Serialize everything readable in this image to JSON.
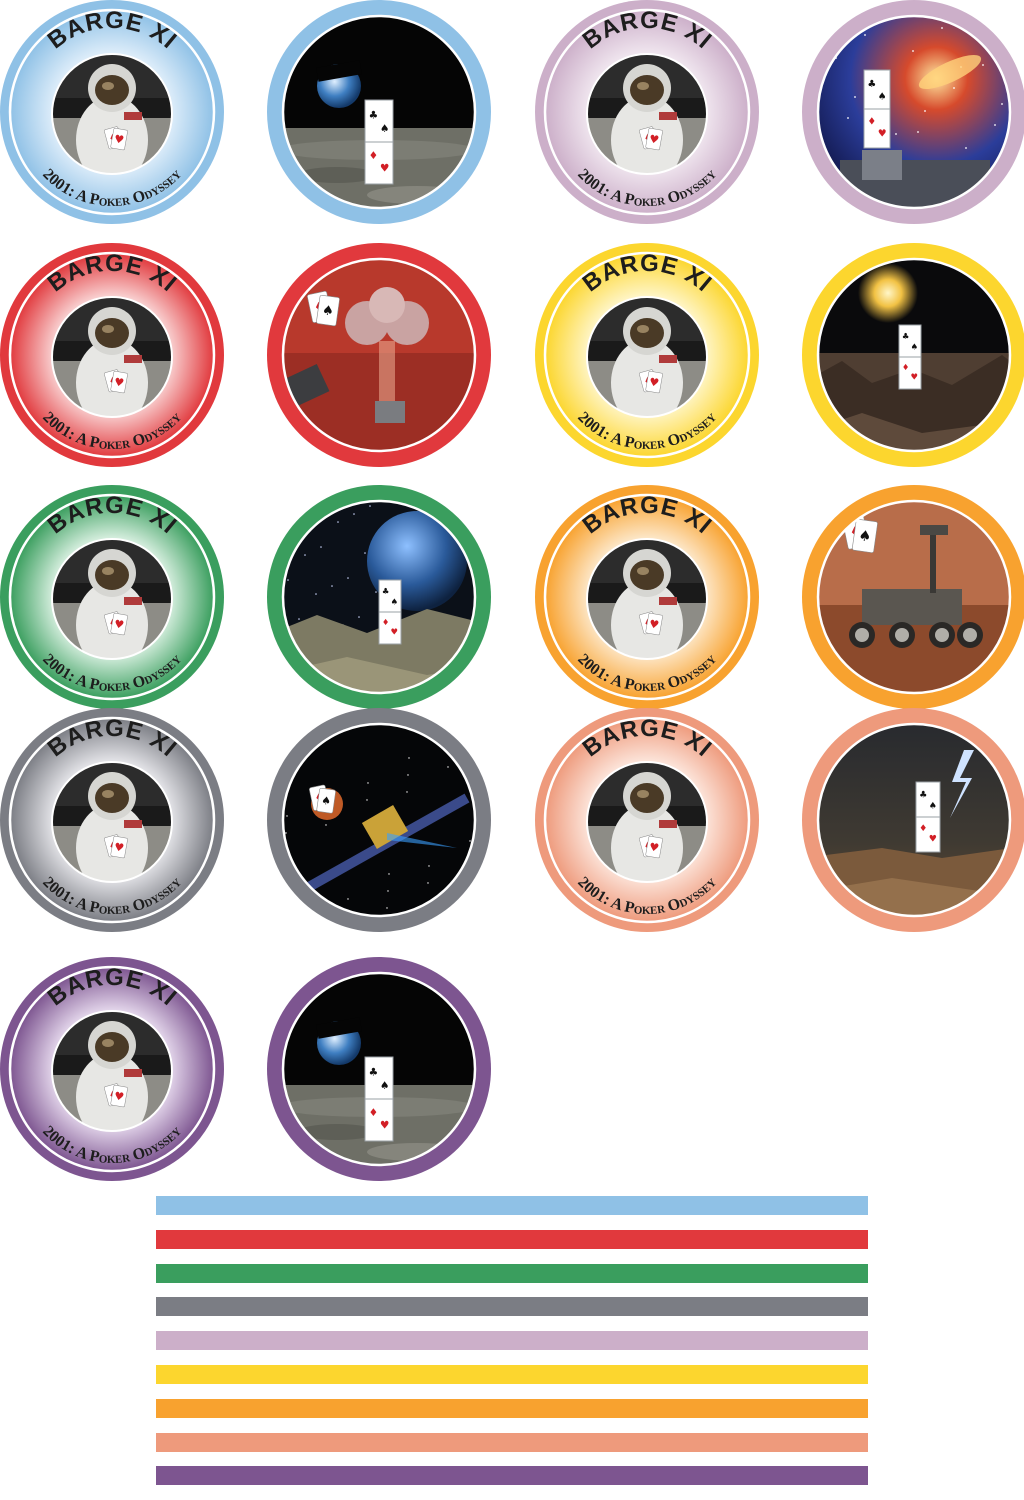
{
  "chip_text": {
    "title": "BARGE XI",
    "subtitle_prefix": "2001: ",
    "subtitle_a": "A",
    "subtitle_p": "P",
    "subtitle_oker": "OKER",
    "subtitle_o": "O",
    "subtitle_dyssey": "DYSSEY"
  },
  "chips": [
    {
      "color_name": "blue",
      "color": "#8fc1e6",
      "light": "#e3f0fb",
      "scene": "earthrise-moon"
    },
    {
      "color_name": "lavender",
      "color": "#ccafc9",
      "light": "#f2e9f1",
      "scene": "galaxy-telescope"
    },
    {
      "color_name": "red",
      "color": "#e1393d",
      "light": "#fadada",
      "scene": "mars-lander"
    },
    {
      "color_name": "yellow",
      "color": "#fcd62e",
      "light": "#fff7d0",
      "scene": "sun-rocky-planet"
    },
    {
      "color_name": "green",
      "color": "#3a9e5e",
      "light": "#dff3e6",
      "scene": "gas-giant-moon"
    },
    {
      "color_name": "orange",
      "color": "#f8a22f",
      "light": "#fdebd1",
      "scene": "mars-rover"
    },
    {
      "color_name": "gray",
      "color": "#7b7d84",
      "light": "#eaeaee",
      "scene": "satellite-space"
    },
    {
      "color_name": "salmon",
      "color": "#ee9a7c",
      "light": "#fde9e0",
      "scene": "lightning-planet"
    },
    {
      "color_name": "purple",
      "color": "#7d5590",
      "light": "#e9ddf0",
      "scene": "earthrise-moon"
    }
  ],
  "stripes": [
    "#8fc1e6",
    "#e1393d",
    "#3a9e5e",
    "#7b7d84",
    "#ccafc9",
    "#fcd62e",
    "#f8a22f",
    "#ee9a7c",
    "#7d5590"
  ]
}
